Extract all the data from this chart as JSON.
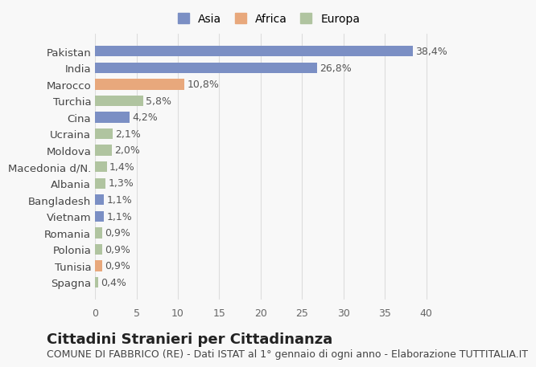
{
  "categories": [
    "Spagna",
    "Tunisia",
    "Polonia",
    "Romania",
    "Vietnam",
    "Bangladesh",
    "Albania",
    "Macedonia d/N.",
    "Moldova",
    "Ucraina",
    "Cina",
    "Turchia",
    "Marocco",
    "India",
    "Pakistan"
  ],
  "values": [
    0.4,
    0.9,
    0.9,
    0.9,
    1.1,
    1.1,
    1.3,
    1.4,
    2.0,
    2.1,
    4.2,
    5.8,
    10.8,
    26.8,
    38.4
  ],
  "labels": [
    "0,4%",
    "0,9%",
    "0,9%",
    "0,9%",
    "1,1%",
    "1,1%",
    "1,3%",
    "1,4%",
    "2,0%",
    "2,1%",
    "4,2%",
    "5,8%",
    "10,8%",
    "26,8%",
    "38,4%"
  ],
  "colors": [
    "#b0c4a0",
    "#e8a87c",
    "#b0c4a0",
    "#b0c4a0",
    "#7b8fc4",
    "#7b8fc4",
    "#b0c4a0",
    "#b0c4a0",
    "#b0c4a0",
    "#b0c4a0",
    "#7b8fc4",
    "#b0c4a0",
    "#e8a87c",
    "#7b8fc4",
    "#7b8fc4"
  ],
  "legend_labels": [
    "Asia",
    "Africa",
    "Europa"
  ],
  "legend_colors": [
    "#7b8fc4",
    "#e8a87c",
    "#b0c4a0"
  ],
  "xlim": [
    0,
    42
  ],
  "xticks": [
    0,
    5,
    10,
    15,
    20,
    25,
    30,
    35,
    40
  ],
  "title": "Cittadini Stranieri per Cittadinanza",
  "subtitle": "COMUNE DI FABBRICO (RE) - Dati ISTAT al 1° gennaio di ogni anno - Elaborazione TUTTITALIA.IT",
  "bg_color": "#f8f8f8",
  "bar_height": 0.65,
  "label_fontsize": 9,
  "title_fontsize": 13,
  "subtitle_fontsize": 9
}
